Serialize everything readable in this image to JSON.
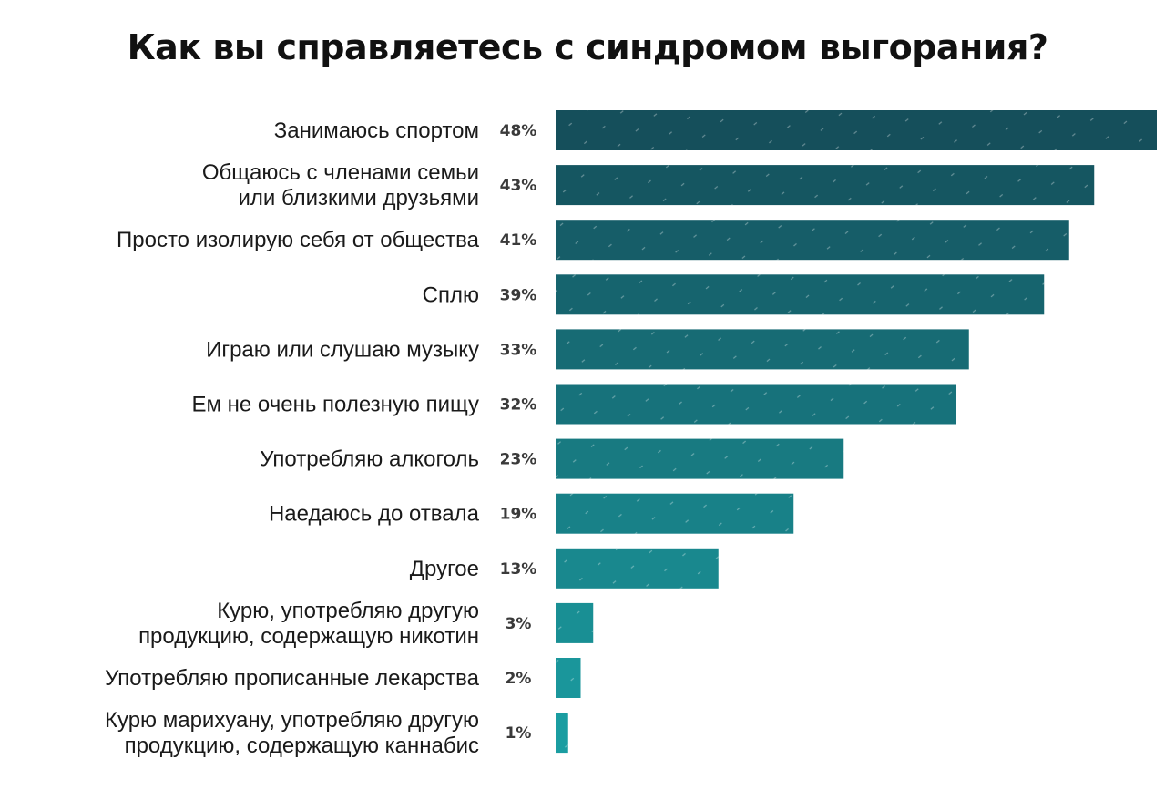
{
  "chart_data": {
    "type": "bar",
    "orientation": "horizontal",
    "title": "Как вы справляетесь с синдромом выгорания?",
    "categories": [
      [
        "Занимаюсь спортом"
      ],
      [
        "Общаюсь с членами семьи",
        "или близкими друзьями"
      ],
      [
        "Просто изолирую себя от общества"
      ],
      [
        "Сплю"
      ],
      [
        "Играю или слушаю музыку"
      ],
      [
        "Ем не очень полезную пищу"
      ],
      [
        "Употребляю алкоголь"
      ],
      [
        "Наедаюсь до отвала"
      ],
      [
        "Другое"
      ],
      [
        "Курю, употребляю другую",
        "продукцию, содержащую никотин"
      ],
      [
        "Употребляю прописанные лекарства"
      ],
      [
        "Курю марихуану, употребляю другую",
        "продукцию, содержащую каннабис"
      ]
    ],
    "values": [
      48,
      43,
      41,
      39,
      33,
      32,
      23,
      19,
      13,
      3,
      2,
      1
    ],
    "value_labels": [
      "48%",
      "43%",
      "41%",
      "39%",
      "33%",
      "32%",
      "23%",
      "19%",
      "13%",
      "3%",
      "2%",
      "1%"
    ],
    "unit": "%",
    "xlim": [
      0,
      48
    ],
    "grid": false,
    "legend": "none",
    "colors": {
      "bar_top": "#154f5b",
      "bar_bottom": "#1a9da1",
      "pattern_line": "#ffffff",
      "label_text": "#1a1a1a",
      "value_text": "#3a3a3a"
    }
  }
}
